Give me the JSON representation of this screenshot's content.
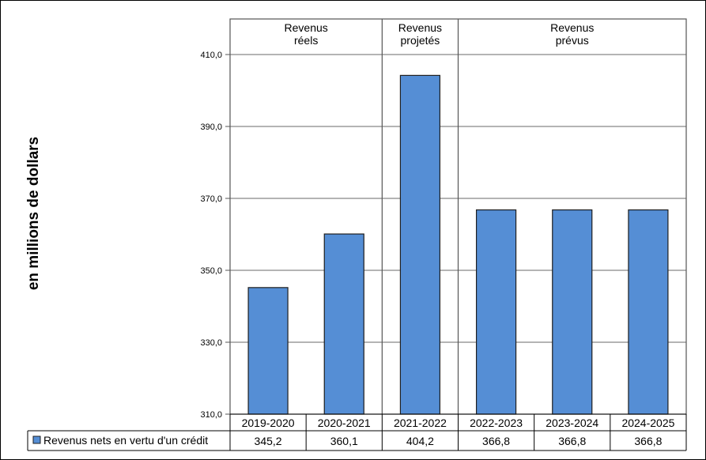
{
  "chart_data": {
    "type": "bar",
    "categories": [
      "2019-2020",
      "2020-2021",
      "2021-2022",
      "2022-2023",
      "2023-2024",
      "2024-2025"
    ],
    "series": [
      {
        "name": "Revenus nets en vertu d'un crédit",
        "values": [
          345.2,
          360.1,
          404.2,
          366.8,
          366.8,
          366.8
        ],
        "value_labels": [
          "345,2",
          "360,1",
          "404,2",
          "366,8",
          "366,8",
          "366,8"
        ],
        "color": "#558ed5"
      }
    ],
    "ylabel": "en millions  de dollars",
    "ylim": [
      310,
      410
    ],
    "yticks": [
      310,
      330,
      350,
      370,
      390,
      410
    ],
    "ytick_labels": [
      "310,0",
      "330,0",
      "350,0",
      "370,0",
      "390,0",
      "410,0"
    ],
    "grid": true,
    "legend_placement": "data-table",
    "period_groups": [
      {
        "line1": "Revenus",
        "line2": "réels",
        "span": [
          0,
          1
        ]
      },
      {
        "line1": "Revenus",
        "line2": "projetés",
        "span": [
          2,
          2
        ]
      },
      {
        "line1": "Revenus",
        "line2": "prévus",
        "span": [
          3,
          5
        ]
      }
    ]
  }
}
